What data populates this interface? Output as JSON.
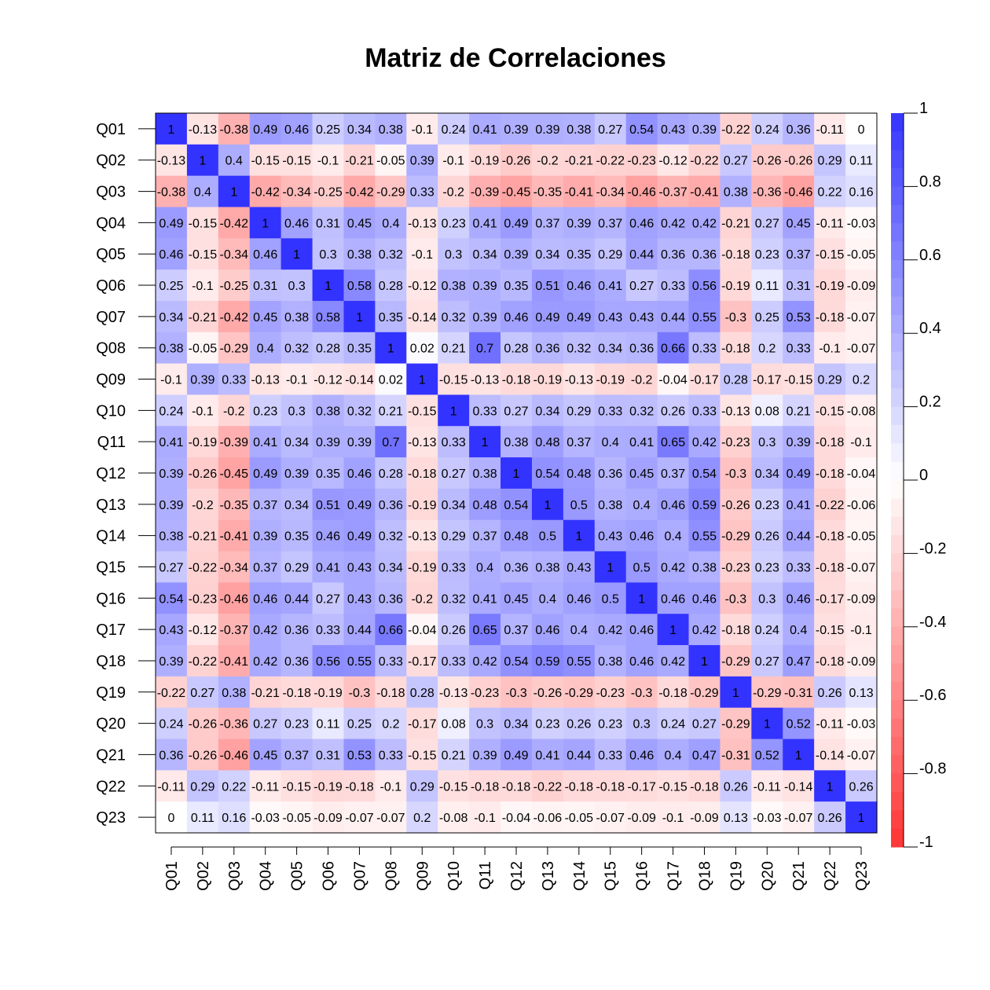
{
  "chart_data": {
    "type": "heatmap",
    "title": "Matriz de Correlaciones",
    "labels": [
      "Q01",
      "Q02",
      "Q03",
      "Q04",
      "Q05",
      "Q06",
      "Q07",
      "Q08",
      "Q09",
      "Q10",
      "Q11",
      "Q12",
      "Q13",
      "Q14",
      "Q15",
      "Q16",
      "Q17",
      "Q18",
      "Q19",
      "Q20",
      "Q21",
      "Q22",
      "Q23"
    ],
    "matrix": [
      [
        1,
        -0.13,
        -0.38,
        0.49,
        0.46,
        0.25,
        0.34,
        0.38,
        -0.1,
        0.24,
        0.41,
        0.39,
        0.39,
        0.38,
        0.27,
        0.54,
        0.43,
        0.39,
        -0.22,
        0.24,
        0.36,
        -0.11,
        0
      ],
      [
        -0.13,
        1,
        0.4,
        -0.15,
        -0.15,
        -0.1,
        -0.21,
        -0.05,
        0.39,
        -0.1,
        -0.19,
        -0.26,
        -0.2,
        -0.21,
        -0.22,
        -0.23,
        -0.12,
        -0.22,
        0.27,
        -0.26,
        -0.26,
        0.29,
        0.11
      ],
      [
        -0.38,
        0.4,
        1,
        -0.42,
        -0.34,
        -0.25,
        -0.42,
        -0.29,
        0.33,
        -0.2,
        -0.39,
        -0.45,
        -0.35,
        -0.41,
        -0.34,
        -0.46,
        -0.37,
        -0.41,
        0.38,
        -0.36,
        -0.46,
        0.22,
        0.16
      ],
      [
        0.49,
        -0.15,
        -0.42,
        1,
        0.46,
        0.31,
        0.45,
        0.4,
        -0.13,
        0.23,
        0.41,
        0.49,
        0.37,
        0.39,
        0.37,
        0.46,
        0.42,
        0.42,
        -0.21,
        0.27,
        0.45,
        -0.11,
        -0.03
      ],
      [
        0.46,
        -0.15,
        -0.34,
        0.46,
        1,
        0.3,
        0.38,
        0.32,
        -0.1,
        0.3,
        0.34,
        0.39,
        0.34,
        0.35,
        0.29,
        0.44,
        0.36,
        0.36,
        -0.18,
        0.23,
        0.37,
        -0.15,
        -0.05
      ],
      [
        0.25,
        -0.1,
        -0.25,
        0.31,
        0.3,
        1,
        0.58,
        0.28,
        -0.12,
        0.38,
        0.39,
        0.35,
        0.51,
        0.46,
        0.41,
        0.27,
        0.33,
        0.56,
        -0.19,
        0.11,
        0.31,
        -0.19,
        -0.09
      ],
      [
        0.34,
        -0.21,
        -0.42,
        0.45,
        0.38,
        0.58,
        1,
        0.35,
        -0.14,
        0.32,
        0.39,
        0.46,
        0.49,
        0.49,
        0.43,
        0.43,
        0.44,
        0.55,
        -0.3,
        0.25,
        0.53,
        -0.18,
        -0.07
      ],
      [
        0.38,
        -0.05,
        -0.29,
        0.4,
        0.32,
        0.28,
        0.35,
        1,
        0.02,
        0.21,
        0.7,
        0.28,
        0.36,
        0.32,
        0.34,
        0.36,
        0.66,
        0.33,
        -0.18,
        0.2,
        0.33,
        -0.1,
        -0.07
      ],
      [
        -0.1,
        0.39,
        0.33,
        -0.13,
        -0.1,
        -0.12,
        -0.14,
        0.02,
        1,
        -0.15,
        -0.13,
        -0.18,
        -0.19,
        -0.13,
        -0.19,
        -0.2,
        -0.04,
        -0.17,
        0.28,
        -0.17,
        -0.15,
        0.29,
        0.2
      ],
      [
        0.24,
        -0.1,
        -0.2,
        0.23,
        0.3,
        0.38,
        0.32,
        0.21,
        -0.15,
        1,
        0.33,
        0.27,
        0.34,
        0.29,
        0.33,
        0.32,
        0.26,
        0.33,
        -0.13,
        0.08,
        0.21,
        -0.15,
        -0.08
      ],
      [
        0.41,
        -0.19,
        -0.39,
        0.41,
        0.34,
        0.39,
        0.39,
        0.7,
        -0.13,
        0.33,
        1,
        0.38,
        0.48,
        0.37,
        0.4,
        0.41,
        0.65,
        0.42,
        -0.23,
        0.3,
        0.39,
        -0.18,
        -0.1
      ],
      [
        0.39,
        -0.26,
        -0.45,
        0.49,
        0.39,
        0.35,
        0.46,
        0.28,
        -0.18,
        0.27,
        0.38,
        1,
        0.54,
        0.48,
        0.36,
        0.45,
        0.37,
        0.54,
        -0.3,
        0.34,
        0.49,
        -0.18,
        -0.04
      ],
      [
        0.39,
        -0.2,
        -0.35,
        0.37,
        0.34,
        0.51,
        0.49,
        0.36,
        -0.19,
        0.34,
        0.48,
        0.54,
        1,
        0.5,
        0.38,
        0.4,
        0.46,
        0.59,
        -0.26,
        0.23,
        0.41,
        -0.22,
        -0.06
      ],
      [
        0.38,
        -0.21,
        -0.41,
        0.39,
        0.35,
        0.46,
        0.49,
        0.32,
        -0.13,
        0.29,
        0.37,
        0.48,
        0.5,
        1,
        0.43,
        0.46,
        0.4,
        0.55,
        -0.29,
        0.26,
        0.44,
        -0.18,
        -0.05
      ],
      [
        0.27,
        -0.22,
        -0.34,
        0.37,
        0.29,
        0.41,
        0.43,
        0.34,
        -0.19,
        0.33,
        0.4,
        0.36,
        0.38,
        0.43,
        1,
        0.5,
        0.42,
        0.38,
        -0.23,
        0.23,
        0.33,
        -0.18,
        -0.07
      ],
      [
        0.54,
        -0.23,
        -0.46,
        0.46,
        0.44,
        0.27,
        0.43,
        0.36,
        -0.2,
        0.32,
        0.41,
        0.45,
        0.4,
        0.46,
        0.5,
        1,
        0.46,
        0.46,
        -0.3,
        0.3,
        0.46,
        -0.17,
        -0.09
      ],
      [
        0.43,
        -0.12,
        -0.37,
        0.42,
        0.36,
        0.33,
        0.44,
        0.66,
        -0.04,
        0.26,
        0.65,
        0.37,
        0.46,
        0.4,
        0.42,
        0.46,
        1,
        0.42,
        -0.18,
        0.24,
        0.4,
        -0.15,
        -0.1
      ],
      [
        0.39,
        -0.22,
        -0.41,
        0.42,
        0.36,
        0.56,
        0.55,
        0.33,
        -0.17,
        0.33,
        0.42,
        0.54,
        0.59,
        0.55,
        0.38,
        0.46,
        0.42,
        1,
        -0.29,
        0.27,
        0.47,
        -0.18,
        -0.09
      ],
      [
        -0.22,
        0.27,
        0.38,
        -0.21,
        -0.18,
        -0.19,
        -0.3,
        -0.18,
        0.28,
        -0.13,
        -0.23,
        -0.3,
        -0.26,
        -0.29,
        -0.23,
        -0.3,
        -0.18,
        -0.29,
        1,
        -0.29,
        -0.31,
        0.26,
        0.13
      ],
      [
        0.24,
        -0.26,
        -0.36,
        0.27,
        0.23,
        0.11,
        0.25,
        0.2,
        -0.17,
        0.08,
        0.3,
        0.34,
        0.23,
        0.26,
        0.23,
        0.3,
        0.24,
        0.27,
        -0.29,
        1,
        0.52,
        -0.11,
        -0.03
      ],
      [
        0.36,
        -0.26,
        -0.46,
        0.45,
        0.37,
        0.31,
        0.53,
        0.33,
        -0.15,
        0.21,
        0.39,
        0.49,
        0.41,
        0.44,
        0.33,
        0.46,
        0.4,
        0.47,
        -0.31,
        0.52,
        1,
        -0.14,
        -0.07
      ],
      [
        -0.11,
        0.29,
        0.22,
        -0.11,
        -0.15,
        -0.19,
        -0.18,
        -0.1,
        0.29,
        -0.15,
        -0.18,
        -0.18,
        -0.22,
        -0.18,
        -0.18,
        -0.17,
        -0.15,
        -0.18,
        0.26,
        -0.11,
        -0.14,
        1,
        0.26
      ],
      [
        0,
        0.11,
        0.16,
        -0.03,
        -0.05,
        -0.09,
        -0.07,
        -0.07,
        0.2,
        -0.08,
        -0.1,
        -0.04,
        -0.06,
        -0.05,
        -0.07,
        -0.09,
        -0.1,
        -0.09,
        0.13,
        -0.03,
        -0.07,
        0.26,
        1
      ]
    ],
    "color_scale": {
      "min": -1,
      "max": 1,
      "low_color": "#ff3333",
      "mid_color": "#ffffff",
      "high_color": "#3333ff",
      "ticks": [
        1,
        0.8,
        0.6,
        0.4,
        0.2,
        0,
        -0.2,
        -0.4,
        -0.6,
        -0.8,
        -1
      ]
    },
    "legend_placement": "right",
    "xlabel": "",
    "ylabel": ""
  }
}
